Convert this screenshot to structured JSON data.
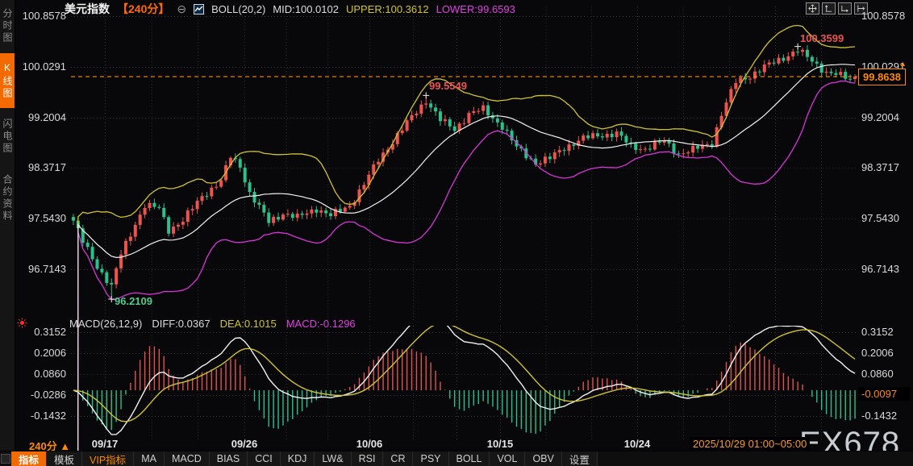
{
  "header": {
    "symbol": "美元指数",
    "interval": "【240分】",
    "collapse_icon": "⊖",
    "boll": "BOLL(20,2)",
    "mid": "MID:100.0102",
    "upper": "UPPER:100.3612",
    "lower": "LOWER:99.6593"
  },
  "sidebar": {
    "items": [
      {
        "label": "分时图",
        "active": false
      },
      {
        "label": "K线图",
        "active": true
      },
      {
        "label": "闪电图",
        "active": false
      },
      {
        "label": "合约资料",
        "active": false
      }
    ]
  },
  "axis": {
    "main_left": [
      "100.8578",
      "100.0291",
      "99.2004",
      "98.3717",
      "97.5430",
      "96.7143"
    ],
    "main_right": [
      "100.8578",
      "100.0291",
      "99.2004",
      "98.3717",
      "97.5430",
      "96.7143"
    ],
    "macd_left": [
      "0.3152",
      "0.2006",
      "0.0860",
      "-0.0286",
      "-0.1432"
    ],
    "macd_right": [
      "0.3152",
      "0.2006",
      "0.0860",
      "-0.1432"
    ],
    "price_tag": "99.8638",
    "price_tag_arrow": "▲",
    "macd_tag": "-0.0097"
  },
  "macd_header": {
    "title": "MACD(26,12,9)",
    "diff": "DIFF:0.0367",
    "dea": "DEA:0.1015",
    "macd": "MACD:-0.1296"
  },
  "annotations": {
    "high1": "99.5549",
    "high2": "100.3599",
    "low": "96.2109"
  },
  "xaxis": {
    "dates": [
      "09/17",
      "09/26",
      "10/06",
      "10/15",
      "10/24"
    ],
    "last_session": "2025/10/29 01:00~05:00",
    "interval_label": "240分 ▲"
  },
  "toolbar": {
    "items": [
      {
        "label": "指标",
        "state": "active"
      },
      {
        "label": "模板",
        "state": "normal"
      },
      {
        "label": "VIP指标",
        "state": "vip"
      },
      {
        "label": "MA",
        "state": "normal"
      },
      {
        "label": "MACD",
        "state": "normal"
      },
      {
        "label": "BIAS",
        "state": "normal"
      },
      {
        "label": "CCI",
        "state": "normal"
      },
      {
        "label": "KDJ",
        "state": "normal"
      },
      {
        "label": "LW&",
        "state": "normal"
      },
      {
        "label": "RSI",
        "state": "normal"
      },
      {
        "label": "CR",
        "state": "normal"
      },
      {
        "label": "PSY",
        "state": "normal"
      },
      {
        "label": "BOLL",
        "state": "normal"
      },
      {
        "label": "VOL",
        "state": "normal"
      },
      {
        "label": "OBV",
        "state": "normal"
      },
      {
        "label": "设置",
        "state": "normal"
      }
    ]
  },
  "watermark": "EX678",
  "chart_data": {
    "type": "candlestick+macd",
    "symbol": "美元指数",
    "interval": "240分",
    "n_bars": 165,
    "price_axis": [
      100.8578,
      100.0291,
      99.2004,
      98.3717,
      97.543,
      96.7143
    ],
    "current_price": 99.8638,
    "dates": [
      "09/17",
      "09/26",
      "10/06",
      "10/15",
      "10/24"
    ],
    "last_session": "2025/10/29 01:00~05:00",
    "close_anchors": [
      [
        0,
        97.5
      ],
      [
        2,
        97.15
      ],
      [
        5,
        96.75
      ],
      [
        8,
        96.42
      ],
      [
        10,
        96.95
      ],
      [
        13,
        97.45
      ],
      [
        15,
        97.75
      ],
      [
        18,
        97.7
      ],
      [
        20,
        97.35
      ],
      [
        23,
        97.5
      ],
      [
        27,
        97.9
      ],
      [
        31,
        98.15
      ],
      [
        33,
        98.55
      ],
      [
        35,
        98.4
      ],
      [
        37,
        97.95
      ],
      [
        41,
        97.48
      ],
      [
        44,
        97.62
      ],
      [
        47,
        97.55
      ],
      [
        51,
        97.7
      ],
      [
        54,
        97.58
      ],
      [
        58,
        97.75
      ],
      [
        61,
        98.1
      ],
      [
        64,
        98.5
      ],
      [
        68,
        98.9
      ],
      [
        71,
        99.2
      ],
      [
        74,
        99.48
      ],
      [
        77,
        99.15
      ],
      [
        80,
        99.0
      ],
      [
        83,
        99.25
      ],
      [
        86,
        99.33
      ],
      [
        90,
        99.05
      ],
      [
        93,
        98.7
      ],
      [
        97,
        98.45
      ],
      [
        100,
        98.52
      ],
      [
        103,
        98.7
      ],
      [
        107,
        98.85
      ],
      [
        110,
        98.9
      ],
      [
        114,
        98.93
      ],
      [
        117,
        98.72
      ],
      [
        120,
        98.68
      ],
      [
        124,
        98.8
      ],
      [
        127,
        98.6
      ],
      [
        130,
        98.66
      ],
      [
        134,
        98.78
      ],
      [
        136,
        99.25
      ],
      [
        139,
        99.78
      ],
      [
        142,
        99.88
      ],
      [
        145,
        100.02
      ],
      [
        147,
        100.1
      ],
      [
        150,
        100.22
      ],
      [
        152,
        100.3
      ],
      [
        155,
        100.12
      ],
      [
        158,
        99.94
      ],
      [
        160,
        99.9
      ],
      [
        163,
        99.82
      ],
      [
        164,
        99.8638
      ]
    ],
    "markers": [
      {
        "index": 8,
        "price": 96.2109,
        "type": "low"
      },
      {
        "index": 74,
        "price": 99.5549,
        "type": "high"
      },
      {
        "index": 152,
        "price": 100.3599,
        "type": "high"
      }
    ],
    "boll": {
      "period": 20,
      "width": 2,
      "mid": 100.0102,
      "upper": 100.3612,
      "lower": 99.6593
    },
    "macd": {
      "fast": 26,
      "mid": 12,
      "signal": 9,
      "diff": 0.0367,
      "dea": 0.1015,
      "hist": -0.1296,
      "last_hist": -0.0097,
      "axis": [
        0.3152,
        0.2006,
        0.086,
        -0.0286,
        -0.1432
      ]
    },
    "colors": {
      "up": "#ef5350",
      "down": "#2cc08c",
      "boll_mid": "#f2f2f2",
      "boll_upper": "#cfc32f",
      "boll_lower": "#d735d7",
      "diff_line": "#f2f2f2",
      "dea_line": "#cfc32f",
      "hist_pos": "#e05252",
      "hist_neg": "#2cc08c",
      "accent": "#ff8a00",
      "grid": "#2c2d31",
      "annotation_high": "#e85555",
      "annotation_low": "#4ecb8d"
    }
  }
}
